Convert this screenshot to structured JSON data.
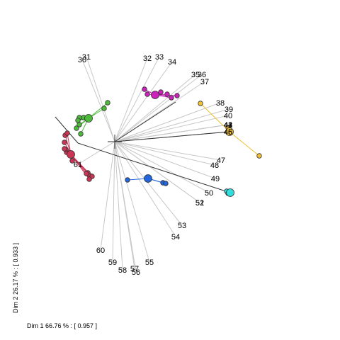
{
  "chart_data": {
    "type": "scatter",
    "title": "",
    "xlabel": "Dim  1   66.76 % : [ 0.957 ]",
    "ylabel": "Dim  2   26.17 % : [ 0.933 ]",
    "grid": false,
    "legend": "none",
    "origin": [
      0,
      0
    ],
    "xlim": [
      -1.05,
      2.6
    ],
    "ylim": [
      -2.1,
      1.3
    ],
    "spokes": [
      {
        "label": "30",
        "x": -0.46,
        "y": 1.16
      },
      {
        "label": "31",
        "x": -0.4,
        "y": 1.2
      },
      {
        "label": "32",
        "x": 0.46,
        "y": 1.18
      },
      {
        "label": "33",
        "x": 0.63,
        "y": 1.2
      },
      {
        "label": "34",
        "x": 0.81,
        "y": 1.13
      },
      {
        "label": "35",
        "x": 1.14,
        "y": 0.95
      },
      {
        "label": "36",
        "x": 1.23,
        "y": 0.95
      },
      {
        "label": "37",
        "x": 1.27,
        "y": 0.85
      },
      {
        "label": "38",
        "x": 1.49,
        "y": 0.55
      },
      {
        "label": "39",
        "x": 1.61,
        "y": 0.46
      },
      {
        "label": "40",
        "x": 1.6,
        "y": 0.37
      },
      {
        "label": "41",
        "x": 1.6,
        "y": 0.24
      },
      {
        "label": "42",
        "x": 1.6,
        "y": 0.24
      },
      {
        "label": "43",
        "x": 1.6,
        "y": 0.24
      },
      {
        "label": "44",
        "x": 1.6,
        "y": 0.24
      },
      {
        "label": "45",
        "x": 1.6,
        "y": 0.14
      },
      {
        "label": "46",
        "x": 1.6,
        "y": 0.14
      },
      {
        "label": "47",
        "x": 1.5,
        "y": -0.26
      },
      {
        "label": "48",
        "x": 1.41,
        "y": -0.33
      },
      {
        "label": "49",
        "x": 1.42,
        "y": -0.52
      },
      {
        "label": "50",
        "x": 1.33,
        "y": -0.72
      },
      {
        "label": "51",
        "x": 1.2,
        "y": -0.86
      },
      {
        "label": "52",
        "x": 1.2,
        "y": -0.86
      },
      {
        "label": "53",
        "x": 0.95,
        "y": -1.18
      },
      {
        "label": "54",
        "x": 0.86,
        "y": -1.34
      },
      {
        "label": "55",
        "x": 0.49,
        "y": -1.7
      },
      {
        "label": "56",
        "x": 0.3,
        "y": -1.84
      },
      {
        "label": "57",
        "x": 0.28,
        "y": -1.79
      },
      {
        "label": "58",
        "x": 0.11,
        "y": -1.81
      },
      {
        "label": "59",
        "x": -0.03,
        "y": -1.7
      },
      {
        "label": "60",
        "x": -0.2,
        "y": -1.53
      },
      {
        "label": "61",
        "x": -0.52,
        "y": -0.32
      }
    ],
    "black_lines": [
      {
        "from": [
          -0.52,
          -0.02
        ],
        "to": [
          1.63,
          -0.72
        ]
      },
      {
        "from": [
          -0.52,
          -0.02
        ],
        "to": [
          -0.84,
          0.35
        ]
      },
      {
        "from": [
          0,
          0
        ],
        "to": [
          0.86,
          0.56
        ]
      },
      {
        "from": [
          0,
          0
        ],
        "to": [
          1.62,
          0.14
        ]
      }
    ],
    "series": [
      {
        "name": "",
        "color": "#4dbb3a",
        "center": [
          -0.37,
          0.33
        ],
        "points": [
          [
            -0.37,
            0.33
          ],
          [
            -0.44,
            0.34
          ],
          [
            -0.5,
            0.34
          ],
          [
            -0.52,
            0.3
          ],
          [
            -0.5,
            0.24
          ],
          [
            -0.54,
            0.19
          ],
          [
            -0.48,
            0.11
          ],
          [
            -0.1,
            0.55
          ],
          [
            -0.15,
            0.47
          ]
        ]
      },
      {
        "name": "",
        "color": "#cc3355",
        "center": [
          -0.62,
          -0.18
        ],
        "points": [
          [
            -0.62,
            -0.18
          ],
          [
            -0.68,
            -0.15
          ],
          [
            -0.69,
            -0.11
          ],
          [
            -0.71,
            -0.1
          ],
          [
            -0.71,
            -0.01
          ],
          [
            -0.7,
            0.09
          ],
          [
            -0.67,
            0.12
          ],
          [
            -0.6,
            -0.27
          ],
          [
            -0.38,
            -0.44
          ],
          [
            -0.35,
            -0.48
          ],
          [
            -0.32,
            -0.49
          ],
          [
            -0.36,
            -0.53
          ],
          [
            -0.4,
            -0.45
          ]
        ]
      },
      {
        "name": "",
        "color": "#cc22bb",
        "center": [
          0.57,
          0.66
        ],
        "points": [
          [
            0.57,
            0.66
          ],
          [
            0.42,
            0.74
          ],
          [
            0.46,
            0.67
          ],
          [
            0.65,
            0.7
          ],
          [
            0.74,
            0.67
          ],
          [
            0.88,
            0.65
          ],
          [
            0.8,
            0.62
          ]
        ]
      },
      {
        "name": "",
        "color": "#f0c030",
        "center": [
          1.62,
          0.14
        ],
        "points": [
          [
            1.62,
            0.14
          ],
          [
            1.21,
            0.54
          ],
          [
            1.6,
            0.2
          ],
          [
            2.04,
            -0.2
          ]
        ]
      },
      {
        "name": "",
        "color": "#2266dd",
        "center": [
          0.47,
          -0.52
        ],
        "points": [
          [
            0.47,
            -0.52
          ],
          [
            0.18,
            -0.54
          ],
          [
            0.68,
            -0.58
          ],
          [
            0.72,
            -0.59
          ]
        ]
      },
      {
        "name": "",
        "color": "#33dddd",
        "center": [
          1.63,
          -0.72
        ],
        "points": [
          [
            1.63,
            -0.72
          ],
          [
            1.58,
            -0.7
          ],
          [
            1.61,
            -0.72
          ],
          [
            1.6,
            -0.73
          ]
        ]
      }
    ]
  }
}
